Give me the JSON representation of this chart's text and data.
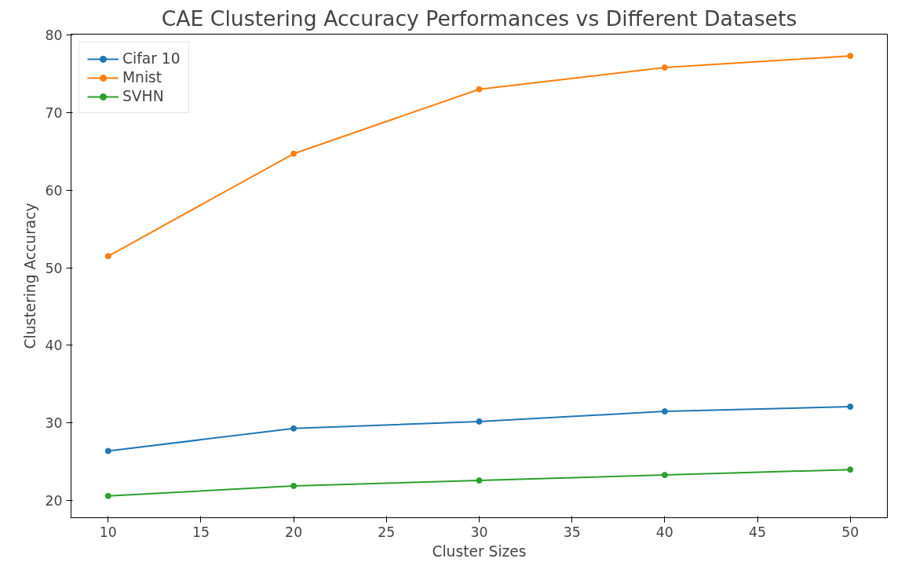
{
  "chart_data": {
    "type": "line",
    "title": "CAE Clustering Accuracy Performances vs Different Datasets",
    "xlabel": "Cluster Sizes",
    "ylabel": "Clustering Accuracy",
    "x": [
      10,
      20,
      30,
      40,
      50
    ],
    "series": [
      {
        "name": "Cifar 10",
        "color": "#1f77b4",
        "values": [
          26.4,
          29.3,
          30.2,
          31.5,
          32.1
        ]
      },
      {
        "name": "Mnist",
        "color": "#ff7f0e",
        "values": [
          51.5,
          64.7,
          73.0,
          75.8,
          77.3
        ]
      },
      {
        "name": "SVHN",
        "color": "#2ca02c",
        "values": [
          20.6,
          21.9,
          22.6,
          23.3,
          24.0
        ]
      }
    ],
    "xlim": [
      8,
      52
    ],
    "ylim": [
      17.8,
      80.1
    ],
    "xticks": [
      10,
      15,
      20,
      25,
      30,
      35,
      40,
      45,
      50
    ],
    "yticks": [
      20,
      30,
      40,
      50,
      60,
      70,
      80
    ],
    "grid": false,
    "legend": "top left",
    "marker": "circle",
    "line_style": "solid"
  }
}
